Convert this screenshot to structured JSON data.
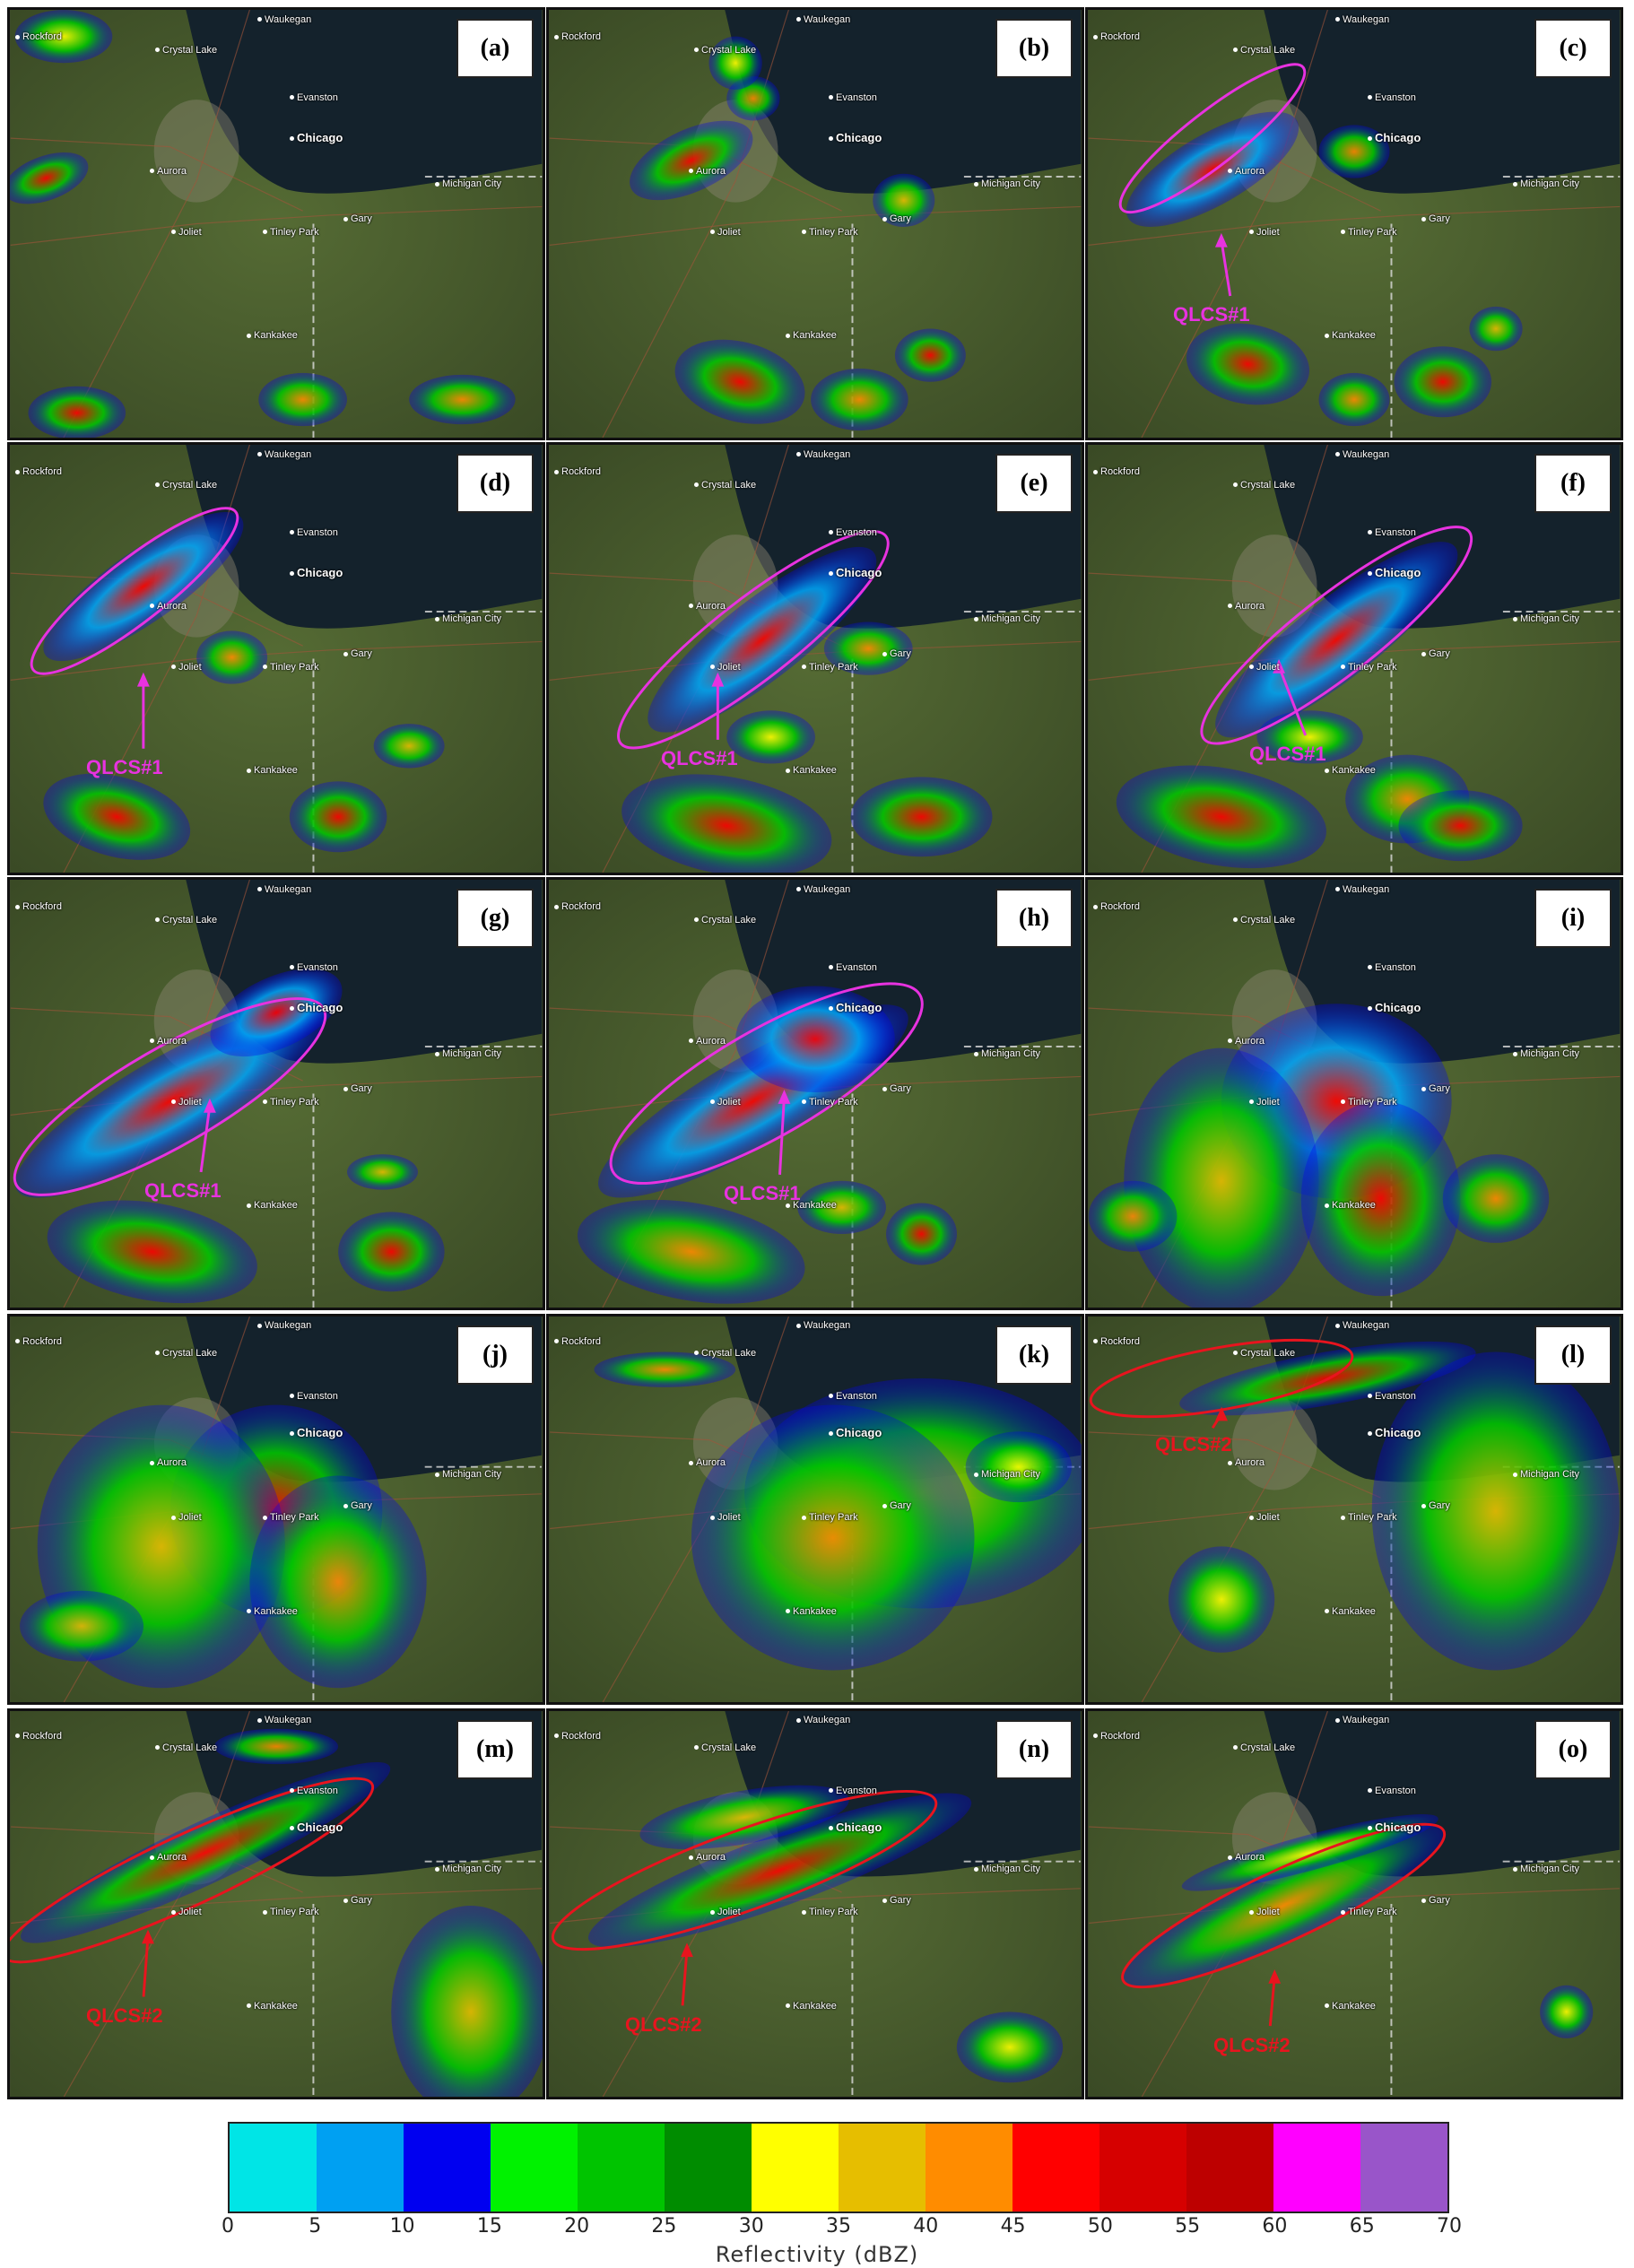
{
  "panels": [
    {
      "label": "(a)",
      "qlcs": null
    },
    {
      "label": "(b)",
      "qlcs": null
    },
    {
      "label": "(c)",
      "qlcs": "QLCS#1"
    },
    {
      "label": "(d)",
      "qlcs": "QLCS#1"
    },
    {
      "label": "(e)",
      "qlcs": "QLCS#1"
    },
    {
      "label": "(f)",
      "qlcs": "QLCS#1"
    },
    {
      "label": "(g)",
      "qlcs": "QLCS#1"
    },
    {
      "label": "(h)",
      "qlcs": "QLCS#1"
    },
    {
      "label": "(i)",
      "qlcs": null
    },
    {
      "label": "(j)",
      "qlcs": null
    },
    {
      "label": "(k)",
      "qlcs": null
    },
    {
      "label": "(l)",
      "qlcs": "QLCS#2"
    },
    {
      "label": "(m)",
      "qlcs": "QLCS#2"
    },
    {
      "label": "(n)",
      "qlcs": "QLCS#2"
    },
    {
      "label": "(o)",
      "qlcs": "QLCS#2"
    }
  ],
  "cities": {
    "waukegan": "Waukegan",
    "rockford": "Rockford",
    "crystal_lake": "Crystal Lake",
    "evanston": "Evanston",
    "chicago": "Chicago",
    "aurora": "Aurora",
    "michigan_city": "Michigan City",
    "joliet": "Joliet",
    "tinley_park": "Tinley Park",
    "gary": "Gary",
    "kankakee": "Kankakee"
  },
  "qlcs_colors": {
    "QLCS#1": "#e832e0",
    "QLCS#2": "#e8141e"
  },
  "colorbar": {
    "title": "Reflectivity (dBZ)",
    "ticks": [
      "0",
      "5",
      "10",
      "15",
      "20",
      "25",
      "30",
      "35",
      "40",
      "45",
      "50",
      "55",
      "60",
      "65",
      "70"
    ],
    "colors": [
      "#00e5e6",
      "#00a0f2",
      "#0000f0",
      "#00f200",
      "#00c400",
      "#008c00",
      "#ffff00",
      "#e6be00",
      "#ff8c00",
      "#ff0000",
      "#d60000",
      "#bd0000",
      "#ff00ff",
      "#9955c9"
    ]
  }
}
